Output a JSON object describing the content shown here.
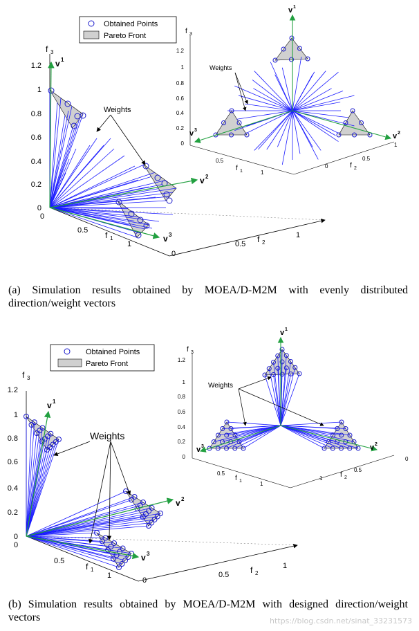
{
  "figure": {
    "legend": {
      "points_label": "Obtained Points",
      "front_label": "Pareto Front"
    },
    "axes": {
      "f1": "f",
      "f1_sub": "1",
      "f2": "f",
      "f2_sub": "2",
      "f3": "f",
      "f3_sub": "3",
      "left_f3_ticks": [
        "1.2",
        "1",
        "0.8",
        "0.6",
        "0.4",
        "0.2",
        "0"
      ],
      "left_f1_ticks": [
        "0",
        "0.5",
        "1"
      ],
      "left_f2_ticks": [
        "0",
        "0.5",
        "1"
      ],
      "inset_f3_ticks": [
        "1.2",
        "1",
        "0.8",
        "0.6",
        "0.4",
        "0.2",
        "0"
      ],
      "inset_f1_ticks": [
        "0.5",
        "1"
      ],
      "inset_f2_ticks": [
        "0",
        "0.5",
        "1"
      ]
    },
    "vectors": {
      "v": "v",
      "s1": "1",
      "s2": "2",
      "s3": "3"
    },
    "weights_label": "Weights",
    "colors": {
      "weights": "#1a1aff",
      "points": "#1a1acc",
      "vectors": "#22a040",
      "front_fill": "#d0d0d0"
    }
  },
  "panel_a": {
    "caption": "(a) Simulation results obtained by MOEA/D-M2M with evenly distributed direction/weight vectors"
  },
  "panel_b": {
    "caption": "(b) Simulation results obtained by MOEA/D-M2M with designed direction/weight vectors"
  },
  "watermark": "https://blog.csdn.net/sinat_33231573"
}
